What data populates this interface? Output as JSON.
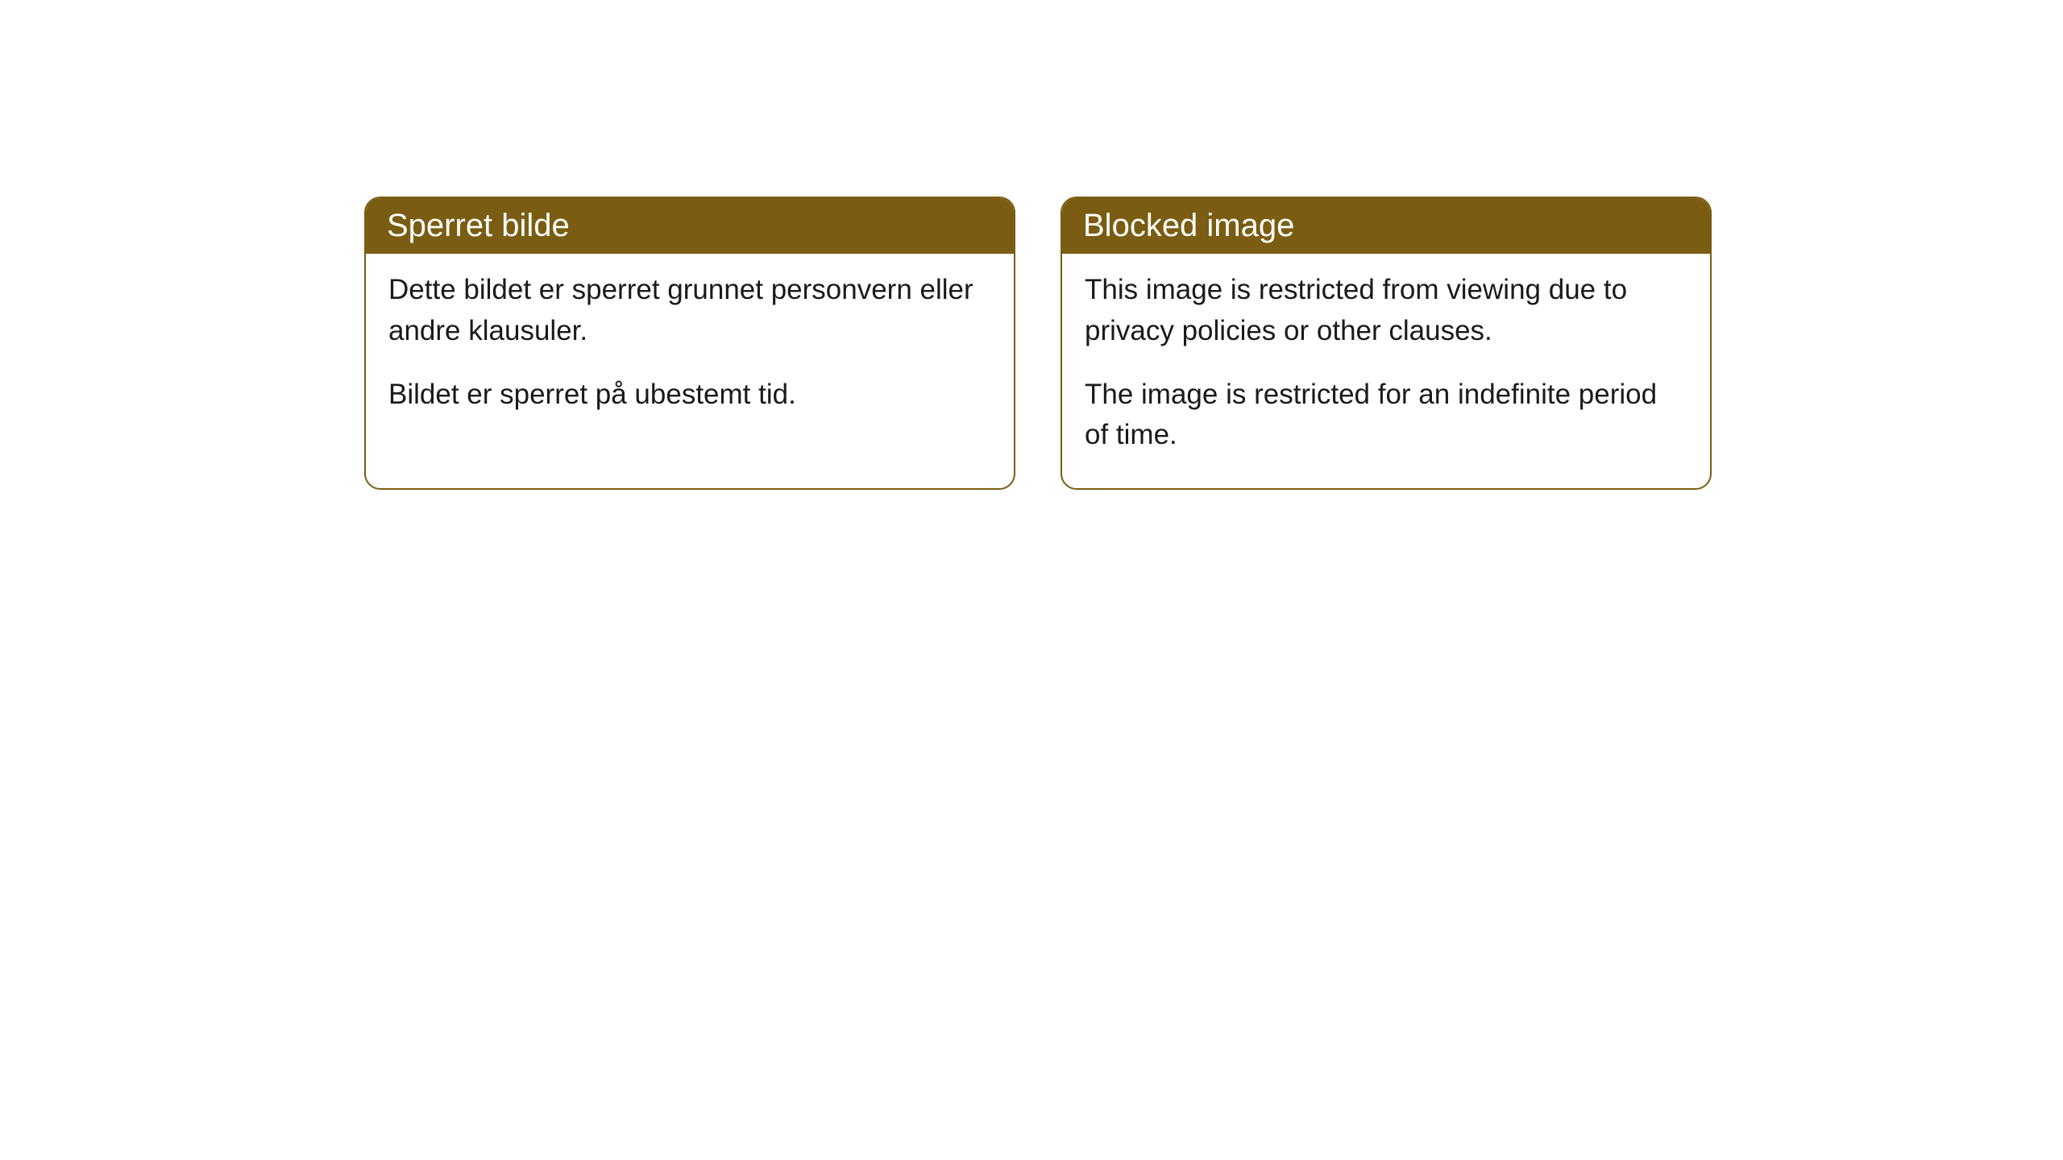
{
  "cards": [
    {
      "title": "Sperret bilde",
      "paragraph1": "Dette bildet er sperret grunnet personvern eller andre klausuler.",
      "paragraph2": "Bildet er sperret på ubestemt tid."
    },
    {
      "title": "Blocked image",
      "paragraph1": "This image is restricted from viewing due to privacy policies or other clauses.",
      "paragraph2": "The image is restricted for an indefinite period of time."
    }
  ],
  "style": {
    "header_bg_color": "#7a5d12",
    "header_text_color": "#ffffff",
    "border_color": "#7a5d12",
    "body_bg_color": "#ffffff",
    "body_text_color": "#1a1a1a",
    "border_radius": 20,
    "title_fontsize": 40,
    "body_fontsize": 35
  }
}
